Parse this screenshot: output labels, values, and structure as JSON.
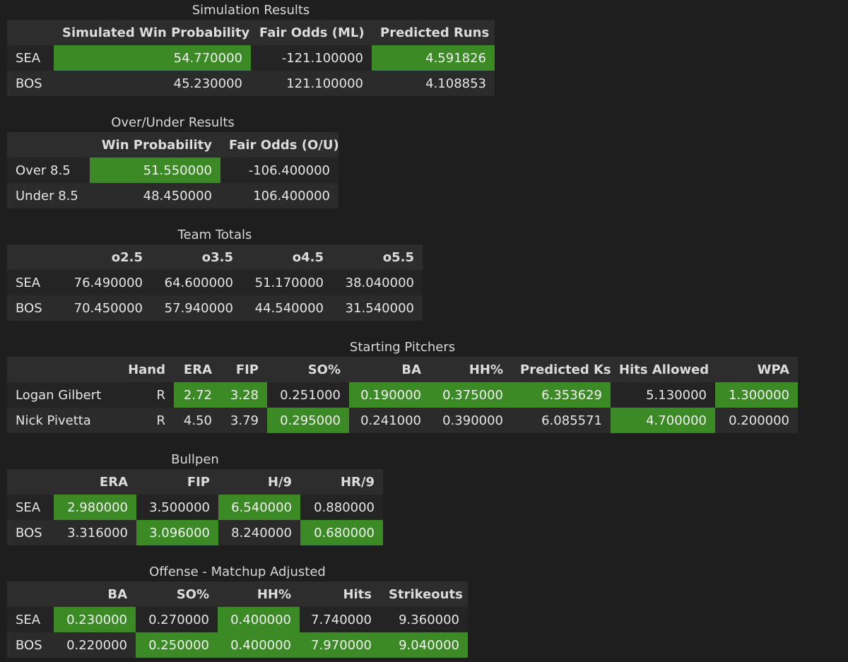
{
  "highlight_color": "#3c8a26",
  "background_color": "#1e1e1e",
  "simulation": {
    "title": "Simulation Results",
    "headers": [
      "",
      "Simulated Win Probability",
      "Fair Odds (ML)",
      "Predicted Runs"
    ],
    "rows": [
      {
        "label": "SEA",
        "values": [
          "54.770000",
          "-121.100000",
          "4.591826"
        ],
        "highlight": [
          true,
          false,
          true
        ]
      },
      {
        "label": "BOS",
        "values": [
          "45.230000",
          "121.100000",
          "4.108853"
        ],
        "highlight": [
          false,
          false,
          false
        ]
      }
    ]
  },
  "over_under": {
    "title": "Over/Under Results",
    "headers": [
      "",
      "Win Probability",
      "Fair Odds (O/U)"
    ],
    "rows": [
      {
        "label": "Over 8.5",
        "values": [
          "51.550000",
          "-106.400000"
        ],
        "highlight": [
          true,
          false
        ]
      },
      {
        "label": "Under 8.5",
        "values": [
          "48.450000",
          "106.400000"
        ],
        "highlight": [
          false,
          false
        ]
      }
    ]
  },
  "team_totals": {
    "title": "Team Totals",
    "headers": [
      "",
      "o2.5",
      "o3.5",
      "o4.5",
      "o5.5"
    ],
    "rows": [
      {
        "label": "SEA",
        "values": [
          "76.490000",
          "64.600000",
          "51.170000",
          "38.040000"
        ],
        "highlight": [
          false,
          false,
          false,
          false
        ]
      },
      {
        "label": "BOS",
        "values": [
          "70.450000",
          "57.940000",
          "44.540000",
          "31.540000"
        ],
        "highlight": [
          false,
          false,
          false,
          false
        ]
      }
    ]
  },
  "starting_pitchers": {
    "title": "Starting Pitchers",
    "headers": [
      "",
      "Hand",
      "ERA",
      "FIP",
      "SO%",
      "BA",
      "HH%",
      "Predicted Ks",
      "Hits Allowed",
      "WPA"
    ],
    "rows": [
      {
        "label": "Logan Gilbert",
        "values": [
          "R",
          "2.72",
          "3.28",
          "0.251000",
          "0.190000",
          "0.375000",
          "6.353629",
          "5.130000",
          "1.300000"
        ],
        "highlight": [
          false,
          true,
          true,
          false,
          true,
          true,
          true,
          false,
          true
        ]
      },
      {
        "label": "Nick Pivetta",
        "values": [
          "R",
          "4.50",
          "3.79",
          "0.295000",
          "0.241000",
          "0.390000",
          "6.085571",
          "4.700000",
          "0.200000"
        ],
        "highlight": [
          false,
          false,
          false,
          true,
          false,
          false,
          false,
          true,
          false
        ]
      }
    ]
  },
  "bullpen": {
    "title": "Bullpen",
    "headers": [
      "",
      "ERA",
      "FIP",
      "H/9",
      "HR/9"
    ],
    "rows": [
      {
        "label": "SEA",
        "values": [
          "2.980000",
          "3.500000",
          "6.540000",
          "0.880000"
        ],
        "highlight": [
          true,
          false,
          true,
          false
        ]
      },
      {
        "label": "BOS",
        "values": [
          "3.316000",
          "3.096000",
          "8.240000",
          "0.680000"
        ],
        "highlight": [
          false,
          true,
          false,
          true
        ]
      }
    ]
  },
  "offense": {
    "title": "Offense - Matchup Adjusted",
    "headers": [
      "",
      "BA",
      "SO%",
      "HH%",
      "Hits",
      "Strikeouts"
    ],
    "rows": [
      {
        "label": "SEA",
        "values": [
          "0.230000",
          "0.270000",
          "0.400000",
          "7.740000",
          "9.360000"
        ],
        "highlight": [
          true,
          false,
          true,
          false,
          false
        ]
      },
      {
        "label": "BOS",
        "values": [
          "0.220000",
          "0.250000",
          "0.400000",
          "7.970000",
          "9.040000"
        ],
        "highlight": [
          false,
          true,
          true,
          true,
          true
        ]
      }
    ]
  }
}
